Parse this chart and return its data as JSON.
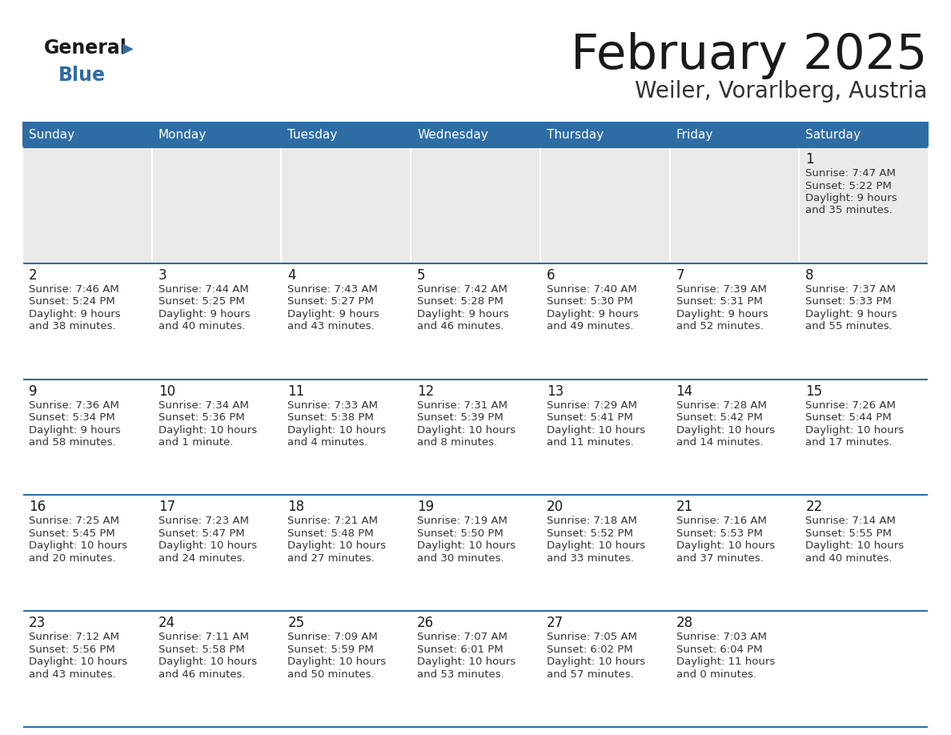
{
  "title": "February 2025",
  "subtitle": "Weiler, Vorarlberg, Austria",
  "header_bg_color": "#2E6DA4",
  "header_text_color": "#FFFFFF",
  "row1_bg_color": "#EAEAEA",
  "row_bg_color": "#FFFFFF",
  "title_color": "#1a1a1a",
  "subtitle_color": "#333333",
  "day_number_color": "#1a1a1a",
  "info_color": "#333333",
  "line_color": "#2E6DA4",
  "logo_general_color": "#1a1a1a",
  "logo_blue_color": "#2E6DA4",
  "logo_triangle_color": "#2E6DA4",
  "day_headers": [
    "Sunday",
    "Monday",
    "Tuesday",
    "Wednesday",
    "Thursday",
    "Friday",
    "Saturday"
  ],
  "calendar": [
    [
      null,
      null,
      null,
      null,
      null,
      null,
      {
        "day": "1",
        "sunrise": "7:47 AM",
        "sunset": "5:22 PM",
        "daylight_l1": "Daylight: 9 hours",
        "daylight_l2": "and 35 minutes."
      }
    ],
    [
      {
        "day": "2",
        "sunrise": "7:46 AM",
        "sunset": "5:24 PM",
        "daylight_l1": "Daylight: 9 hours",
        "daylight_l2": "and 38 minutes."
      },
      {
        "day": "3",
        "sunrise": "7:44 AM",
        "sunset": "5:25 PM",
        "daylight_l1": "Daylight: 9 hours",
        "daylight_l2": "and 40 minutes."
      },
      {
        "day": "4",
        "sunrise": "7:43 AM",
        "sunset": "5:27 PM",
        "daylight_l1": "Daylight: 9 hours",
        "daylight_l2": "and 43 minutes."
      },
      {
        "day": "5",
        "sunrise": "7:42 AM",
        "sunset": "5:28 PM",
        "daylight_l1": "Daylight: 9 hours",
        "daylight_l2": "and 46 minutes."
      },
      {
        "day": "6",
        "sunrise": "7:40 AM",
        "sunset": "5:30 PM",
        "daylight_l1": "Daylight: 9 hours",
        "daylight_l2": "and 49 minutes."
      },
      {
        "day": "7",
        "sunrise": "7:39 AM",
        "sunset": "5:31 PM",
        "daylight_l1": "Daylight: 9 hours",
        "daylight_l2": "and 52 minutes."
      },
      {
        "day": "8",
        "sunrise": "7:37 AM",
        "sunset": "5:33 PM",
        "daylight_l1": "Daylight: 9 hours",
        "daylight_l2": "and 55 minutes."
      }
    ],
    [
      {
        "day": "9",
        "sunrise": "7:36 AM",
        "sunset": "5:34 PM",
        "daylight_l1": "Daylight: 9 hours",
        "daylight_l2": "and 58 minutes."
      },
      {
        "day": "10",
        "sunrise": "7:34 AM",
        "sunset": "5:36 PM",
        "daylight_l1": "Daylight: 10 hours",
        "daylight_l2": "and 1 minute."
      },
      {
        "day": "11",
        "sunrise": "7:33 AM",
        "sunset": "5:38 PM",
        "daylight_l1": "Daylight: 10 hours",
        "daylight_l2": "and 4 minutes."
      },
      {
        "day": "12",
        "sunrise": "7:31 AM",
        "sunset": "5:39 PM",
        "daylight_l1": "Daylight: 10 hours",
        "daylight_l2": "and 8 minutes."
      },
      {
        "day": "13",
        "sunrise": "7:29 AM",
        "sunset": "5:41 PM",
        "daylight_l1": "Daylight: 10 hours",
        "daylight_l2": "and 11 minutes."
      },
      {
        "day": "14",
        "sunrise": "7:28 AM",
        "sunset": "5:42 PM",
        "daylight_l1": "Daylight: 10 hours",
        "daylight_l2": "and 14 minutes."
      },
      {
        "day": "15",
        "sunrise": "7:26 AM",
        "sunset": "5:44 PM",
        "daylight_l1": "Daylight: 10 hours",
        "daylight_l2": "and 17 minutes."
      }
    ],
    [
      {
        "day": "16",
        "sunrise": "7:25 AM",
        "sunset": "5:45 PM",
        "daylight_l1": "Daylight: 10 hours",
        "daylight_l2": "and 20 minutes."
      },
      {
        "day": "17",
        "sunrise": "7:23 AM",
        "sunset": "5:47 PM",
        "daylight_l1": "Daylight: 10 hours",
        "daylight_l2": "and 24 minutes."
      },
      {
        "day": "18",
        "sunrise": "7:21 AM",
        "sunset": "5:48 PM",
        "daylight_l1": "Daylight: 10 hours",
        "daylight_l2": "and 27 minutes."
      },
      {
        "day": "19",
        "sunrise": "7:19 AM",
        "sunset": "5:50 PM",
        "daylight_l1": "Daylight: 10 hours",
        "daylight_l2": "and 30 minutes."
      },
      {
        "day": "20",
        "sunrise": "7:18 AM",
        "sunset": "5:52 PM",
        "daylight_l1": "Daylight: 10 hours",
        "daylight_l2": "and 33 minutes."
      },
      {
        "day": "21",
        "sunrise": "7:16 AM",
        "sunset": "5:53 PM",
        "daylight_l1": "Daylight: 10 hours",
        "daylight_l2": "and 37 minutes."
      },
      {
        "day": "22",
        "sunrise": "7:14 AM",
        "sunset": "5:55 PM",
        "daylight_l1": "Daylight: 10 hours",
        "daylight_l2": "and 40 minutes."
      }
    ],
    [
      {
        "day": "23",
        "sunrise": "7:12 AM",
        "sunset": "5:56 PM",
        "daylight_l1": "Daylight: 10 hours",
        "daylight_l2": "and 43 minutes."
      },
      {
        "day": "24",
        "sunrise": "7:11 AM",
        "sunset": "5:58 PM",
        "daylight_l1": "Daylight: 10 hours",
        "daylight_l2": "and 46 minutes."
      },
      {
        "day": "25",
        "sunrise": "7:09 AM",
        "sunset": "5:59 PM",
        "daylight_l1": "Daylight: 10 hours",
        "daylight_l2": "and 50 minutes."
      },
      {
        "day": "26",
        "sunrise": "7:07 AM",
        "sunset": "6:01 PM",
        "daylight_l1": "Daylight: 10 hours",
        "daylight_l2": "and 53 minutes."
      },
      {
        "day": "27",
        "sunrise": "7:05 AM",
        "sunset": "6:02 PM",
        "daylight_l1": "Daylight: 10 hours",
        "daylight_l2": "and 57 minutes."
      },
      {
        "day": "28",
        "sunrise": "7:03 AM",
        "sunset": "6:04 PM",
        "daylight_l1": "Daylight: 11 hours",
        "daylight_l2": "and 0 minutes."
      },
      null
    ]
  ]
}
